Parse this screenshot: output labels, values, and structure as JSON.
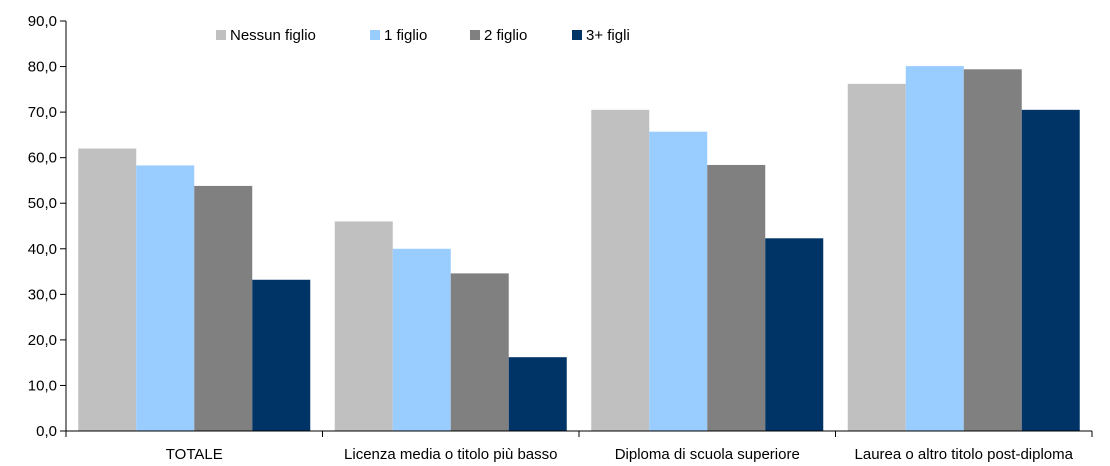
{
  "chart_data": {
    "type": "bar",
    "categories": [
      "TOTALE",
      "Licenza media o titolo più basso",
      "Diploma di scuola superiore",
      "Laurea o altro titolo post-diploma"
    ],
    "series": [
      {
        "name": "Nessun figlio",
        "color": "#c0c0c0",
        "values": [
          62.0,
          46.0,
          70.5,
          76.2
        ]
      },
      {
        "name": "1 figlio",
        "color": "#99ccff",
        "values": [
          58.3,
          40.0,
          65.7,
          80.1
        ]
      },
      {
        "name": "2 figlio",
        "color": "#808080",
        "values": [
          53.8,
          34.6,
          58.4,
          79.4
        ]
      },
      {
        "name": "3+ figli",
        "color": "#003366",
        "values": [
          33.2,
          16.2,
          42.3,
          70.5
        ]
      }
    ],
    "ylim": [
      0,
      90
    ],
    "yticks": [
      "0,0",
      "10,0",
      "20,0",
      "30,0",
      "40,0",
      "50,0",
      "60,0",
      "70,0",
      "80,0",
      "90,0"
    ],
    "ytick_step": 10,
    "grid": false,
    "legend_position": "top-left"
  }
}
